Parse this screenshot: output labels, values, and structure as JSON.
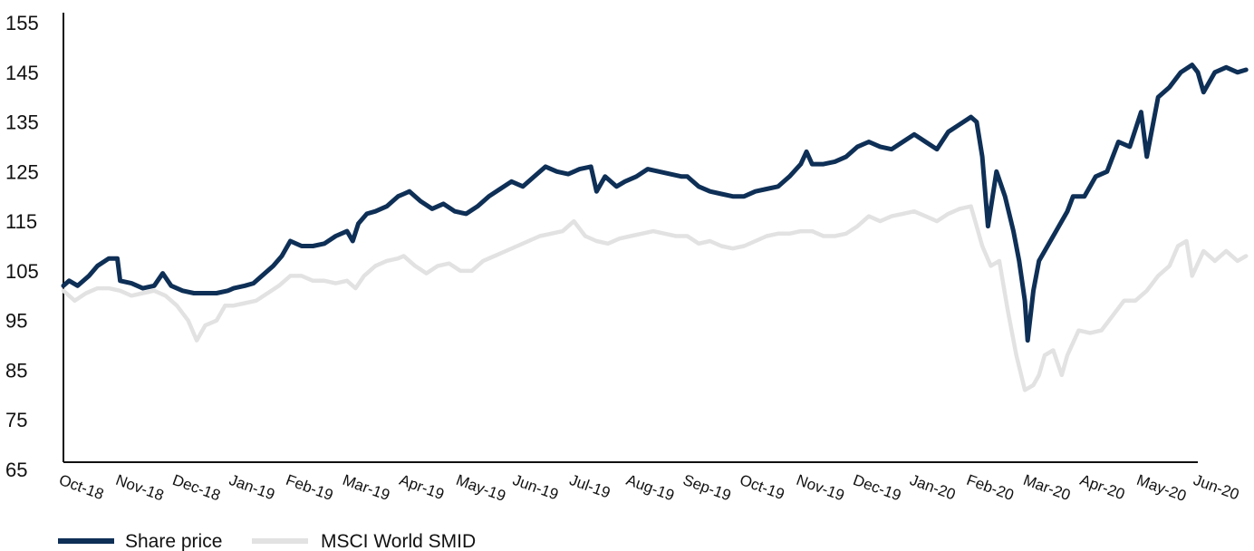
{
  "chart_data": {
    "type": "line",
    "title": "",
    "xlabel": "",
    "ylabel": "",
    "ylim": [
      65,
      155
    ],
    "y_ticks": [
      "155",
      "145",
      "135",
      "125",
      "115",
      "105",
      "95",
      "85",
      "75",
      "65"
    ],
    "x_ticks": [
      "Oct-18",
      "Nov-18",
      "Dec-18",
      "Jan-19",
      "Feb-19",
      "Mar-19",
      "Apr-19",
      "May-19",
      "Jun-19",
      "Jul-19",
      "Aug-19",
      "Sep-19",
      "Oct-19",
      "Nov-19",
      "Dec-19",
      "Jan-20",
      "Feb-20",
      "Mar-20",
      "Apr-20",
      "May-20",
      "Jun-20"
    ],
    "grid": false,
    "legend_position": "bottom-left",
    "series": [
      {
        "name": "Share price",
        "color": "#0e2f56",
        "values": [
          [
            0.0,
            102
          ],
          [
            0.1,
            103
          ],
          [
            0.25,
            102
          ],
          [
            0.45,
            104
          ],
          [
            0.6,
            106
          ],
          [
            0.8,
            107.5
          ],
          [
            0.95,
            107.5
          ],
          [
            1.0,
            103
          ],
          [
            1.2,
            102.5
          ],
          [
            1.4,
            101.5
          ],
          [
            1.6,
            102
          ],
          [
            1.75,
            104.5
          ],
          [
            1.9,
            102
          ],
          [
            2.1,
            101
          ],
          [
            2.3,
            100.5
          ],
          [
            2.5,
            100.5
          ],
          [
            2.7,
            100.5
          ],
          [
            2.9,
            101
          ],
          [
            3.0,
            101.5
          ],
          [
            3.2,
            102
          ],
          [
            3.35,
            102.5
          ],
          [
            3.55,
            104.5
          ],
          [
            3.7,
            106
          ],
          [
            3.85,
            108
          ],
          [
            4.0,
            111
          ],
          [
            4.2,
            110
          ],
          [
            4.4,
            110
          ],
          [
            4.6,
            110.5
          ],
          [
            4.8,
            112
          ],
          [
            5.0,
            113
          ],
          [
            5.1,
            111
          ],
          [
            5.2,
            114.5
          ],
          [
            5.35,
            116.5
          ],
          [
            5.5,
            117
          ],
          [
            5.7,
            118
          ],
          [
            5.9,
            120
          ],
          [
            6.0,
            120.5
          ],
          [
            6.1,
            121
          ],
          [
            6.3,
            119
          ],
          [
            6.5,
            117.5
          ],
          [
            6.7,
            118.5
          ],
          [
            6.9,
            117
          ],
          [
            7.1,
            116.5
          ],
          [
            7.3,
            118
          ],
          [
            7.5,
            120
          ],
          [
            7.7,
            121.5
          ],
          [
            7.9,
            123
          ],
          [
            8.1,
            122
          ],
          [
            8.3,
            124
          ],
          [
            8.5,
            126
          ],
          [
            8.7,
            125
          ],
          [
            8.9,
            124.5
          ],
          [
            9.1,
            125.5
          ],
          [
            9.3,
            126
          ],
          [
            9.4,
            121
          ],
          [
            9.55,
            124
          ],
          [
            9.75,
            122
          ],
          [
            9.9,
            123
          ],
          [
            10.1,
            124
          ],
          [
            10.3,
            125.5
          ],
          [
            10.5,
            125
          ],
          [
            10.7,
            124.5
          ],
          [
            10.9,
            124
          ],
          [
            11.0,
            124
          ],
          [
            11.2,
            122
          ],
          [
            11.4,
            121
          ],
          [
            11.6,
            120.5
          ],
          [
            11.8,
            120
          ],
          [
            12.0,
            120
          ],
          [
            12.2,
            121
          ],
          [
            12.4,
            121.5
          ],
          [
            12.6,
            122
          ],
          [
            12.8,
            124
          ],
          [
            13.0,
            126.5
          ],
          [
            13.1,
            129
          ],
          [
            13.2,
            126.5
          ],
          [
            13.4,
            126.5
          ],
          [
            13.6,
            127
          ],
          [
            13.8,
            128
          ],
          [
            14.0,
            130
          ],
          [
            14.2,
            131
          ],
          [
            14.4,
            130
          ],
          [
            14.6,
            129.5
          ],
          [
            14.8,
            131
          ],
          [
            15.0,
            132.5
          ],
          [
            15.2,
            131
          ],
          [
            15.4,
            129.5
          ],
          [
            15.6,
            133
          ],
          [
            15.8,
            134.5
          ],
          [
            16.0,
            136
          ],
          [
            16.1,
            135
          ],
          [
            16.2,
            128
          ],
          [
            16.3,
            114
          ],
          [
            16.45,
            125
          ],
          [
            16.6,
            120
          ],
          [
            16.75,
            113
          ],
          [
            16.85,
            107
          ],
          [
            16.95,
            99
          ],
          [
            17.0,
            91
          ],
          [
            17.1,
            101
          ],
          [
            17.2,
            107
          ],
          [
            17.35,
            110
          ],
          [
            17.5,
            113
          ],
          [
            17.7,
            117
          ],
          [
            17.8,
            120
          ],
          [
            18.0,
            120
          ],
          [
            18.2,
            124
          ],
          [
            18.4,
            125
          ],
          [
            18.6,
            131
          ],
          [
            18.8,
            130
          ],
          [
            19.0,
            137
          ],
          [
            19.1,
            128
          ],
          [
            19.3,
            140
          ],
          [
            19.5,
            142
          ],
          [
            19.7,
            145
          ],
          [
            19.9,
            146.5
          ],
          [
            20.0,
            145
          ],
          [
            20.1,
            141
          ],
          [
            20.3,
            145
          ],
          [
            20.5,
            146
          ],
          [
            20.7,
            145
          ],
          [
            20.85,
            145.5
          ]
        ]
      },
      {
        "name": "MSCI World SMID",
        "color": "#e2e2e2",
        "values": [
          [
            0.0,
            101
          ],
          [
            0.2,
            99
          ],
          [
            0.4,
            100.5
          ],
          [
            0.6,
            101.5
          ],
          [
            0.8,
            101.5
          ],
          [
            1.0,
            101
          ],
          [
            1.2,
            100
          ],
          [
            1.4,
            100.5
          ],
          [
            1.6,
            101
          ],
          [
            1.8,
            100
          ],
          [
            2.0,
            98
          ],
          [
            2.2,
            95
          ],
          [
            2.35,
            91
          ],
          [
            2.5,
            94
          ],
          [
            2.7,
            95
          ],
          [
            2.85,
            98
          ],
          [
            3.0,
            98
          ],
          [
            3.2,
            98.5
          ],
          [
            3.4,
            99
          ],
          [
            3.6,
            100.5
          ],
          [
            3.8,
            102
          ],
          [
            4.0,
            104
          ],
          [
            4.2,
            104
          ],
          [
            4.4,
            103
          ],
          [
            4.6,
            103
          ],
          [
            4.8,
            102.5
          ],
          [
            5.0,
            103
          ],
          [
            5.15,
            101.5
          ],
          [
            5.3,
            104
          ],
          [
            5.5,
            106
          ],
          [
            5.7,
            107
          ],
          [
            5.9,
            107.5
          ],
          [
            6.0,
            108
          ],
          [
            6.2,
            106
          ],
          [
            6.4,
            104.5
          ],
          [
            6.6,
            106
          ],
          [
            6.8,
            106.5
          ],
          [
            7.0,
            105
          ],
          [
            7.2,
            105
          ],
          [
            7.4,
            107
          ],
          [
            7.6,
            108
          ],
          [
            7.8,
            109
          ],
          [
            8.0,
            110
          ],
          [
            8.2,
            111
          ],
          [
            8.4,
            112
          ],
          [
            8.6,
            112.5
          ],
          [
            8.8,
            113
          ],
          [
            9.0,
            115
          ],
          [
            9.2,
            112
          ],
          [
            9.4,
            111
          ],
          [
            9.6,
            110.5
          ],
          [
            9.8,
            111.5
          ],
          [
            10.0,
            112
          ],
          [
            10.2,
            112.5
          ],
          [
            10.4,
            113
          ],
          [
            10.6,
            112.5
          ],
          [
            10.8,
            112
          ],
          [
            11.0,
            112
          ],
          [
            11.2,
            110.5
          ],
          [
            11.4,
            111
          ],
          [
            11.6,
            110
          ],
          [
            11.8,
            109.5
          ],
          [
            12.0,
            110
          ],
          [
            12.2,
            111
          ],
          [
            12.4,
            112
          ],
          [
            12.6,
            112.5
          ],
          [
            12.8,
            112.5
          ],
          [
            13.0,
            113
          ],
          [
            13.2,
            113
          ],
          [
            13.4,
            112
          ],
          [
            13.6,
            112
          ],
          [
            13.8,
            112.5
          ],
          [
            14.0,
            114
          ],
          [
            14.2,
            116
          ],
          [
            14.4,
            115
          ],
          [
            14.6,
            116
          ],
          [
            14.8,
            116.5
          ],
          [
            15.0,
            117
          ],
          [
            15.2,
            116
          ],
          [
            15.4,
            115
          ],
          [
            15.6,
            116.5
          ],
          [
            15.8,
            117.5
          ],
          [
            16.0,
            118
          ],
          [
            16.1,
            114
          ],
          [
            16.2,
            110
          ],
          [
            16.35,
            106
          ],
          [
            16.5,
            107
          ],
          [
            16.65,
            97
          ],
          [
            16.8,
            88
          ],
          [
            16.95,
            81
          ],
          [
            17.1,
            82
          ],
          [
            17.2,
            84
          ],
          [
            17.3,
            88
          ],
          [
            17.45,
            89
          ],
          [
            17.6,
            84
          ],
          [
            17.7,
            88
          ],
          [
            17.9,
            93
          ],
          [
            18.1,
            92.5
          ],
          [
            18.3,
            93
          ],
          [
            18.5,
            96
          ],
          [
            18.7,
            99
          ],
          [
            18.9,
            99
          ],
          [
            19.1,
            101
          ],
          [
            19.3,
            104
          ],
          [
            19.5,
            106
          ],
          [
            19.65,
            110
          ],
          [
            19.8,
            111
          ],
          [
            19.9,
            104
          ],
          [
            20.1,
            109
          ],
          [
            20.3,
            107
          ],
          [
            20.5,
            109
          ],
          [
            20.7,
            107
          ],
          [
            20.85,
            108
          ]
        ]
      }
    ]
  }
}
